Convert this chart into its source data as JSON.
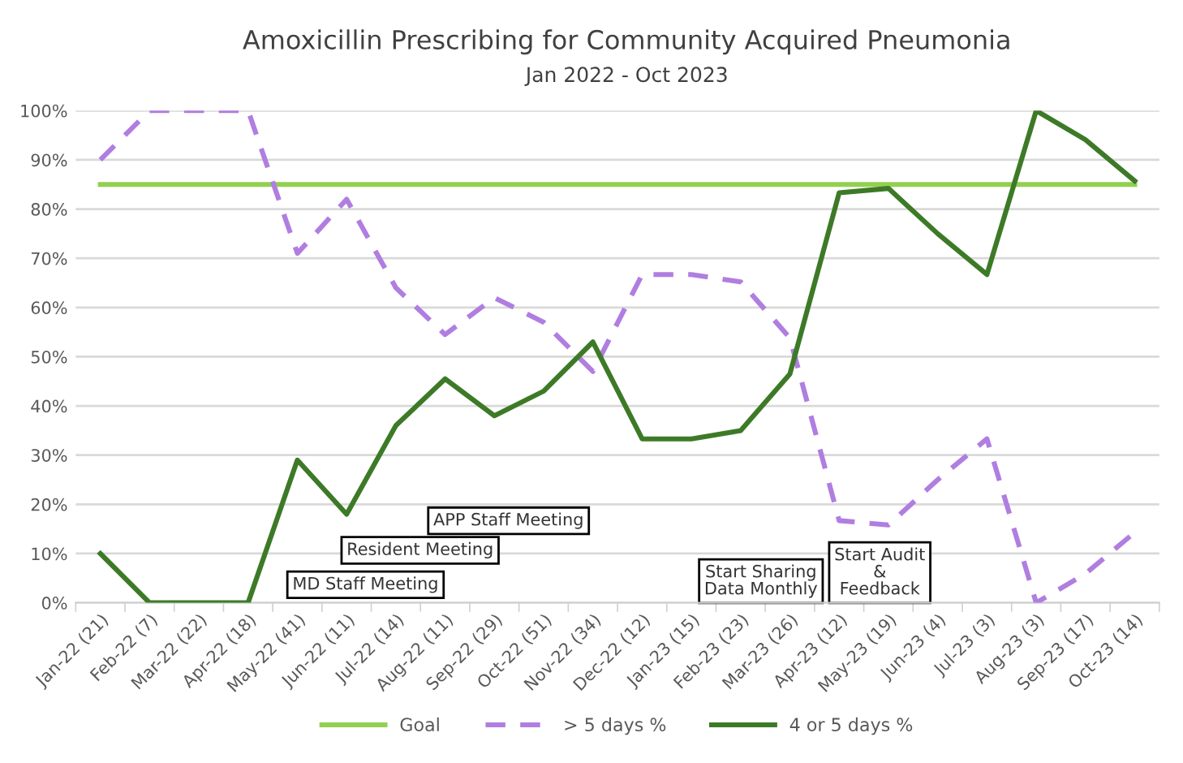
{
  "chart_data": {
    "type": "line",
    "title": "Amoxicillin Prescribing for Community Acquired Pneumonia",
    "subtitle": "Jan 2022 - Oct 2023",
    "categories": [
      "Jan-22 (21)",
      "Feb-22 (7)",
      "Mar-22 (22)",
      "Apr-22 (18)",
      "May-22 (41)",
      "Jun-22 (11)",
      "Jul-22 (14)",
      "Aug-22 (11)",
      "Sep-22 (29)",
      "Oct-22 (51)",
      "Nov-22 (34)",
      "Dec-22 (12)",
      "Jan-23 (15)",
      "Feb-23 (23)",
      "Mar-23 (26)",
      "Apr-23 (12)",
      "May-23 (19)",
      "Jun-23 (4)",
      "Jul-23 (3)",
      "Aug-23 (3)",
      "Sep-23 (17)",
      "Oct-23 (14)"
    ],
    "series": [
      {
        "name": "Goal",
        "color": "#92d050",
        "line_style": "solid",
        "values": [
          85,
          85,
          85,
          85,
          85,
          85,
          85,
          85,
          85,
          85,
          85,
          85,
          85,
          85,
          85,
          85,
          85,
          85,
          85,
          85,
          85,
          85
        ]
      },
      {
        "name": "> 5 days %",
        "color": "#b07ee0",
        "line_style": "dashed",
        "values": [
          90,
          100,
          100,
          100,
          71,
          82,
          64,
          54.5,
          62,
          57,
          47,
          66.7,
          66.7,
          65.2,
          53.8,
          16.7,
          15.8,
          25,
          33.3,
          0,
          5.9,
          14.3
        ]
      },
      {
        "name": "4 or 5 days %",
        "color": "#3d7a27",
        "line_style": "solid",
        "values": [
          10,
          0,
          0,
          0,
          29,
          18,
          36,
          45.5,
          38,
          43,
          53,
          33.3,
          33.3,
          35,
          46.5,
          83.3,
          84.2,
          75,
          66.7,
          100,
          94.1,
          85.7
        ]
      }
    ],
    "ylim": [
      0,
      100
    ],
    "yticks": [
      {
        "value": 0,
        "label": "0%"
      },
      {
        "value": 10,
        "label": "10%"
      },
      {
        "value": 20,
        "label": "20%"
      },
      {
        "value": 30,
        "label": "30%"
      },
      {
        "value": 40,
        "label": "40%"
      },
      {
        "value": 50,
        "label": "50%"
      },
      {
        "value": 60,
        "label": "60%"
      },
      {
        "value": 70,
        "label": "70%"
      },
      {
        "value": 80,
        "label": "80%"
      },
      {
        "value": 90,
        "label": "90%"
      },
      {
        "value": 100,
        "label": "100%"
      }
    ],
    "grid": "y",
    "legend": "bottom",
    "marker": "none",
    "annotations": [
      "MD Staff Meeting",
      "Resident Meeting",
      "APP Staff Meeting",
      "Start Sharing\nData Monthly",
      "Start Audit\n&\nFeedback"
    ]
  }
}
